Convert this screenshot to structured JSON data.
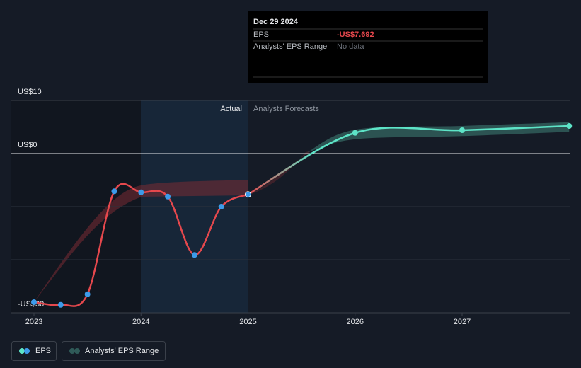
{
  "chart_data": {
    "type": "line",
    "ylim": [
      -30,
      10
    ],
    "yticks": [
      {
        "value": 10,
        "label": "US$10"
      },
      {
        "value": 0,
        "label": "US$0"
      },
      {
        "value": -30,
        "label": "-US$30"
      }
    ],
    "minor_gridlines": [
      -20,
      -10
    ],
    "xlim": [
      2022.9,
      2028
    ],
    "xticks": [
      2023,
      2024,
      2025,
      2026,
      2027
    ],
    "divider_x": 2025,
    "actual_label": "Actual",
    "forecast_label": "Analysts Forecasts",
    "series": [
      {
        "name": "EPS",
        "color": "#e5484d",
        "forecast_color": "#5de4c7",
        "marker_color": "#3d9be9",
        "x": [
          2023,
          2023.25,
          2023.5,
          2023.75,
          2024,
          2024.25,
          2024.5,
          2024.75,
          2025,
          2026,
          2027,
          2028
        ],
        "values": [
          -28.0,
          -28.5,
          -26.5,
          -7.1,
          -7.3,
          -8.1,
          -19.1,
          -10.0,
          -7.692,
          3.9,
          4.4,
          5.2
        ]
      },
      {
        "name": "Analysts' EPS Range",
        "color": "#2f5a58",
        "x": [
          2025.55,
          2026,
          2027,
          2028
        ],
        "low": [
          0.2,
          2.7,
          3.3,
          4.1
        ],
        "high": [
          0.2,
          4.5,
          5.2,
          5.9
        ]
      }
    ],
    "tooltip": {
      "date": "Dec 29 2024",
      "rows": [
        {
          "label": "EPS",
          "value": "-US$7.692"
        },
        {
          "label": "Analysts' EPS Range",
          "value": "No data"
        }
      ]
    }
  }
}
